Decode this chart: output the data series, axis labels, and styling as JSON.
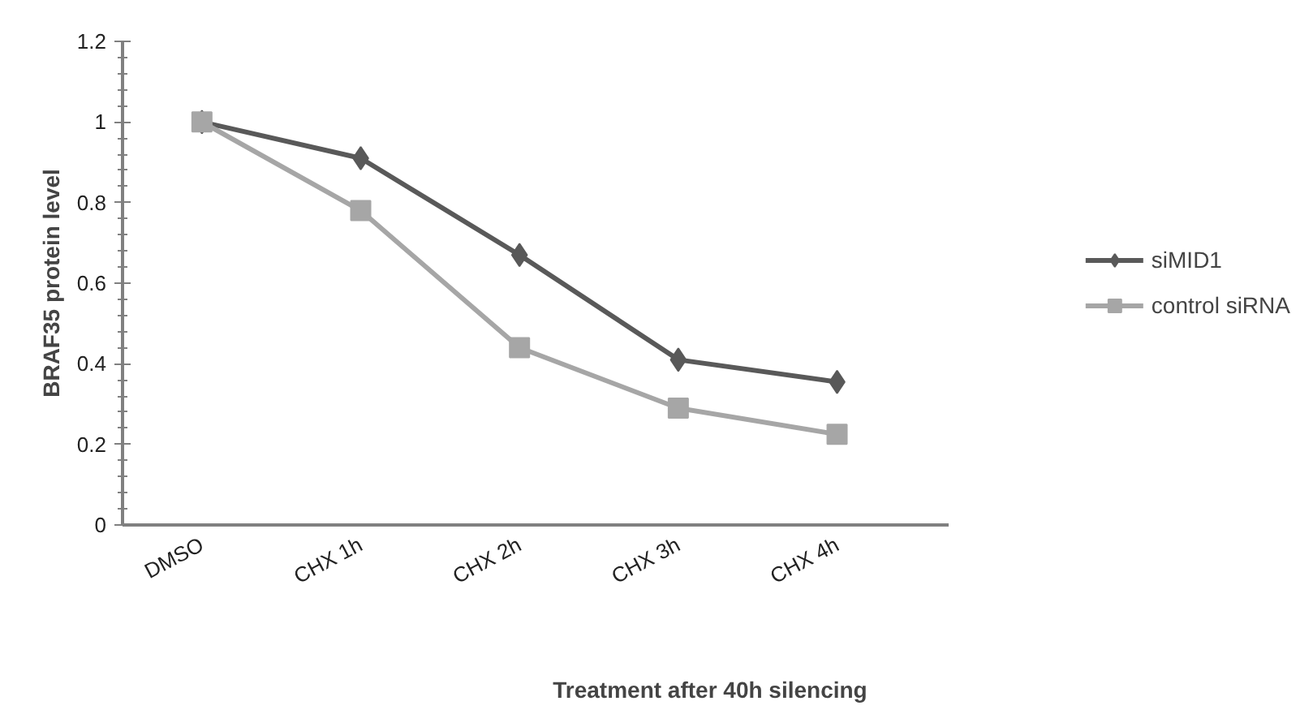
{
  "chart_data": {
    "type": "line",
    "xlabel": "Treatment after 40h silencing",
    "ylabel": "BRAF35 protein level",
    "categories": [
      "DMSO",
      "CHX 1h",
      "CHX 2h",
      "CHX 3h",
      "CHX 4h"
    ],
    "series": [
      {
        "name": "siMID1",
        "color": "#595959",
        "marker": "diamond",
        "values": [
          1,
          0.91,
          0.67,
          0.41,
          0.355
        ]
      },
      {
        "name": "control siRNA",
        "color": "#a6a6a6",
        "marker": "square",
        "values": [
          1,
          0.78,
          0.44,
          0.29,
          0.225
        ]
      }
    ],
    "ylim": [
      0,
      1.2
    ],
    "yticks": [
      0,
      0.2,
      0.4,
      0.6,
      0.8,
      1,
      1.2
    ],
    "grid": false,
    "legend": "right"
  }
}
